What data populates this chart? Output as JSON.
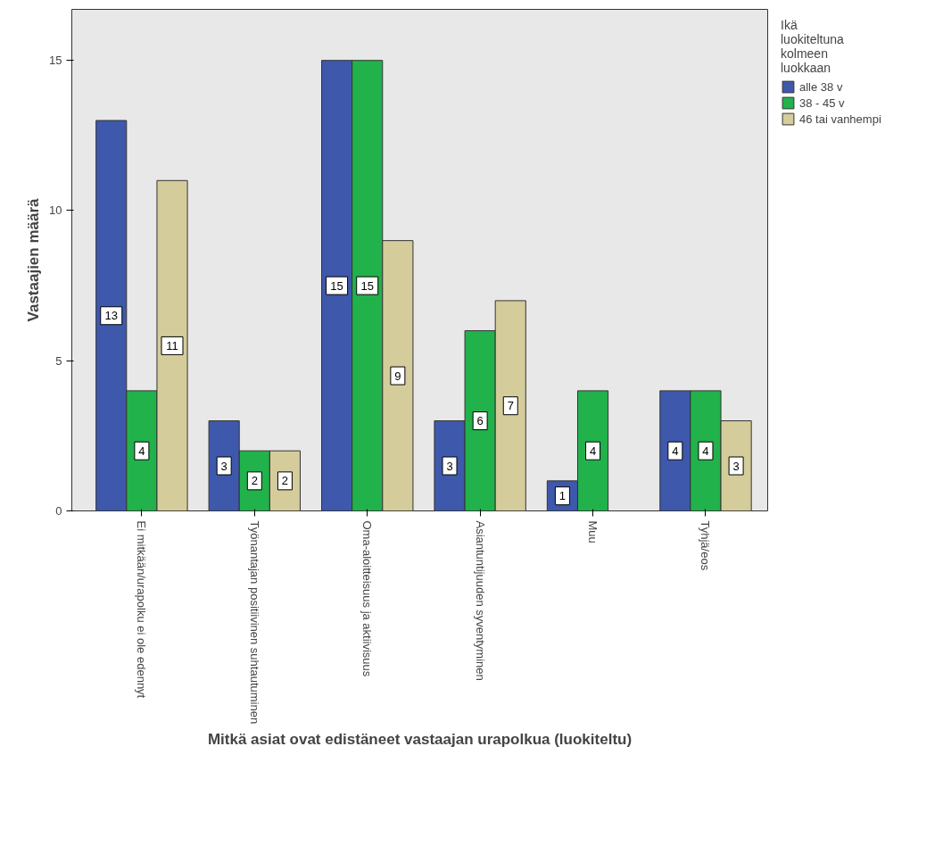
{
  "chart_data": {
    "type": "bar",
    "xlabel": "Mitkä asiat ovat edistäneet vastaajan urapolkua (luokiteltu)",
    "ylabel": "Vastaajien määrä",
    "legend_title": "Ikä luokiteltuna kolmeen luokkaan",
    "categories": [
      "Ei mitkään/urapolku ei ole edennyt",
      "Työnantajan positiivinen suhtautuminen",
      "Oma-aloitteisuus ja aktiivisuus",
      "Asiantuntijuuden syventyminen",
      "Muu",
      "Tyhjä/eos"
    ],
    "series": [
      {
        "name": "alle 38 v",
        "color": "#3e58ac",
        "values": [
          13,
          3,
          15,
          3,
          1,
          4
        ]
      },
      {
        "name": "38 - 45 v",
        "color": "#21b24b",
        "values": [
          4,
          2,
          15,
          6,
          4,
          4
        ]
      },
      {
        "name": "46 tai vanhempi",
        "color": "#d4cc9a",
        "values": [
          11,
          2,
          9,
          7,
          null,
          3
        ]
      }
    ],
    "ylim": [
      0,
      16.7
    ],
    "yticks": [
      0,
      5,
      10,
      15
    ],
    "data_labels": true,
    "grid": false,
    "legend": "right"
  }
}
